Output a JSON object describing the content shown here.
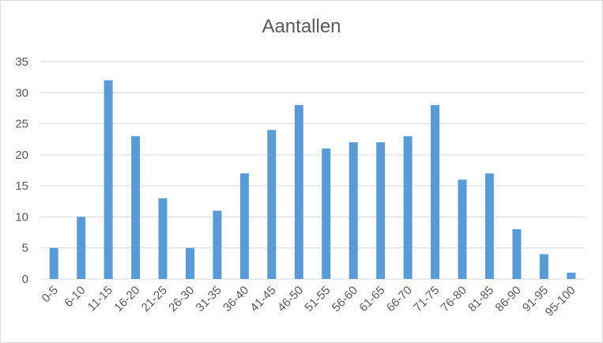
{
  "chart_data": {
    "type": "bar",
    "title": "Aantallen",
    "categories": [
      "0-5",
      "6-10",
      "11-15",
      "16-20",
      "21-25",
      "26-30",
      "31-35",
      "36-40",
      "41-45",
      "46-50",
      "51-55",
      "56-60",
      "61-65",
      "66-70",
      "71-75",
      "76-80",
      "81-85",
      "86-90",
      "91-95",
      "95-100"
    ],
    "values": [
      5,
      10,
      32,
      23,
      13,
      5,
      11,
      17,
      24,
      28,
      21,
      22,
      22,
      23,
      28,
      16,
      17,
      8,
      4,
      1
    ],
    "ylim": [
      0,
      35
    ],
    "yticks": [
      0,
      5,
      10,
      15,
      20,
      25,
      30,
      35
    ],
    "grid": true,
    "legend": "none",
    "bar_color": "#5b9bd5",
    "grid_color": "#d9d9d9"
  }
}
